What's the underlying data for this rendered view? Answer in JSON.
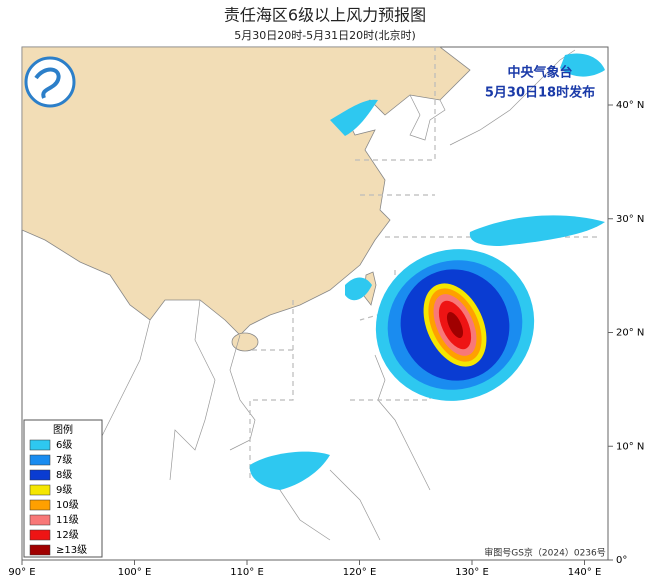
{
  "header": {
    "title": "责任海区6级以上风力预报图",
    "subtitle": "5月30日20时-5月31日20时(北京时)"
  },
  "issuer": {
    "agency": "中央气象台",
    "issued": "5月30日18时发布"
  },
  "legend": {
    "title": "图例",
    "items": [
      {
        "label": "6级",
        "color": "#2ec8f0"
      },
      {
        "label": "7级",
        "color": "#1a8cf0"
      },
      {
        "label": "8级",
        "color": "#0a3cd2"
      },
      {
        "label": "9级",
        "color": "#f5e600"
      },
      {
        "label": "10级",
        "color": "#ffa000"
      },
      {
        "label": "11级",
        "color": "#f87878"
      },
      {
        "label": "12级",
        "color": "#ee1414"
      },
      {
        "label": "≥13级",
        "color": "#a00000"
      }
    ]
  },
  "axes": {
    "longitude": [
      "90° E",
      "100° E",
      "110° E",
      "120° E",
      "130° E",
      "140° E"
    ],
    "latitude": [
      "40° N",
      "30° N",
      "20° N",
      "10° N",
      "0°"
    ]
  },
  "footer": {
    "approval": "审图号GS京（2024）0236号"
  }
}
